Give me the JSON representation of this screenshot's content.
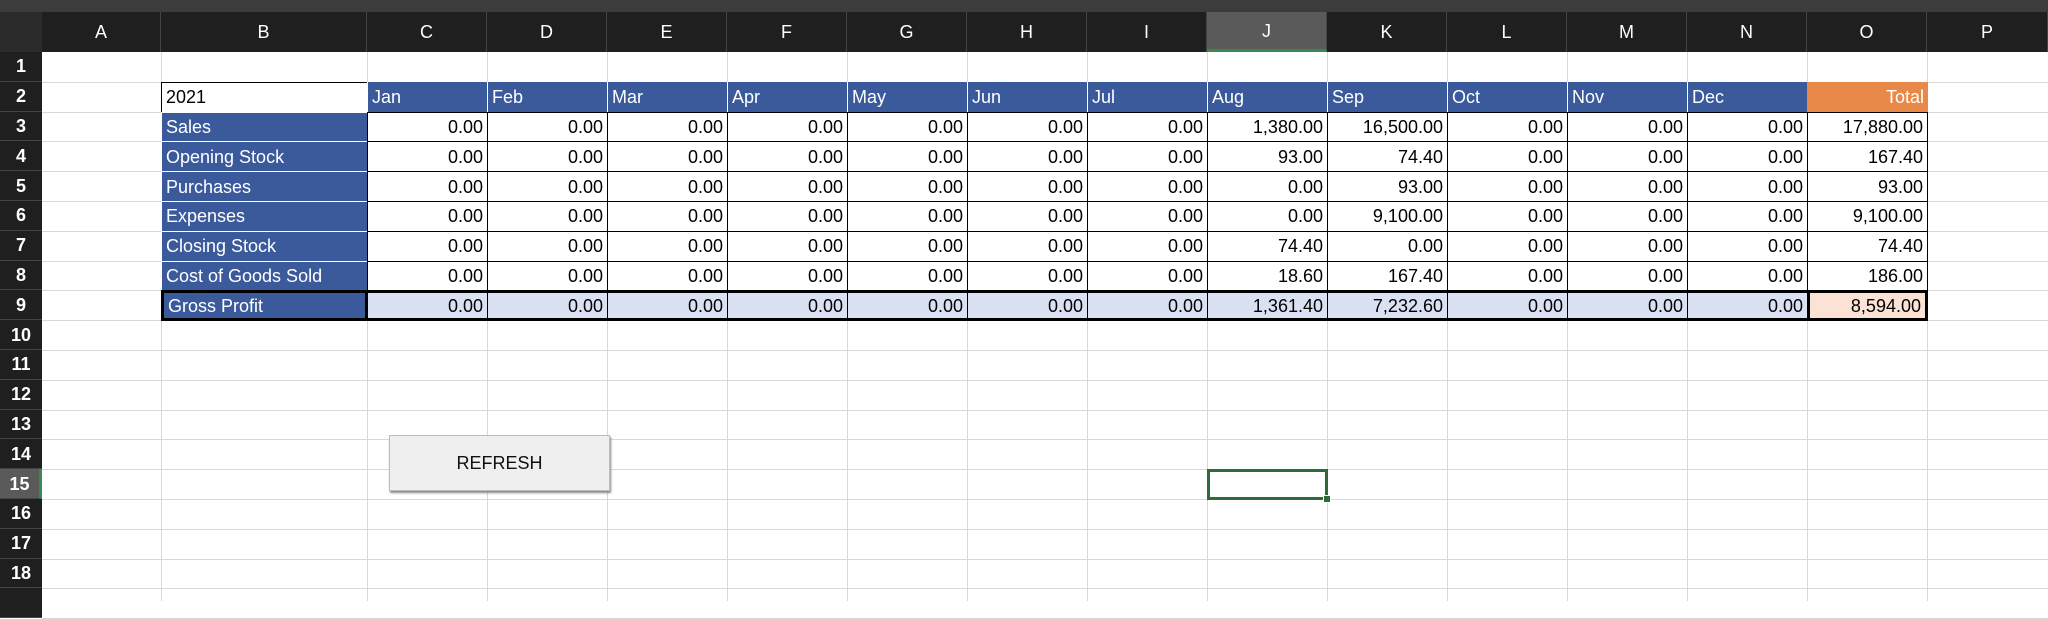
{
  "column_headers": [
    "A",
    "B",
    "C",
    "D",
    "E",
    "F",
    "G",
    "H",
    "I",
    "J",
    "K",
    "L",
    "M",
    "N",
    "O",
    "P"
  ],
  "row_headers": [
    1,
    2,
    3,
    4,
    5,
    6,
    7,
    8,
    9,
    10,
    11,
    12,
    13,
    14,
    15,
    16,
    17,
    18
  ],
  "table": {
    "year": "2021",
    "months": [
      "Jan",
      "Feb",
      "Mar",
      "Apr",
      "May",
      "Jun",
      "Jul",
      "Aug",
      "Sep",
      "Oct",
      "Nov",
      "Dec"
    ],
    "total_label": "Total",
    "rows": [
      {
        "label": "Sales",
        "values": [
          "0.00",
          "0.00",
          "0.00",
          "0.00",
          "0.00",
          "0.00",
          "0.00",
          "1,380.00",
          "16,500.00",
          "0.00",
          "0.00",
          "0.00"
        ],
        "total": "17,880.00"
      },
      {
        "label": "Opening Stock",
        "values": [
          "0.00",
          "0.00",
          "0.00",
          "0.00",
          "0.00",
          "0.00",
          "0.00",
          "93.00",
          "74.40",
          "0.00",
          "0.00",
          "0.00"
        ],
        "total": "167.40"
      },
      {
        "label": "Purchases",
        "values": [
          "0.00",
          "0.00",
          "0.00",
          "0.00",
          "0.00",
          "0.00",
          "0.00",
          "0.00",
          "93.00",
          "0.00",
          "0.00",
          "0.00"
        ],
        "total": "93.00"
      },
      {
        "label": "Expenses",
        "values": [
          "0.00",
          "0.00",
          "0.00",
          "0.00",
          "0.00",
          "0.00",
          "0.00",
          "0.00",
          "9,100.00",
          "0.00",
          "0.00",
          "0.00"
        ],
        "total": "9,100.00"
      },
      {
        "label": "Closing Stock",
        "values": [
          "0.00",
          "0.00",
          "0.00",
          "0.00",
          "0.00",
          "0.00",
          "0.00",
          "74.40",
          "0.00",
          "0.00",
          "0.00",
          "0.00"
        ],
        "total": "74.40"
      },
      {
        "label": "Cost of Goods Sold",
        "values": [
          "0.00",
          "0.00",
          "0.00",
          "0.00",
          "0.00",
          "0.00",
          "0.00",
          "18.60",
          "167.40",
          "0.00",
          "0.00",
          "0.00"
        ],
        "total": "186.00"
      },
      {
        "label": "Gross Profit",
        "values": [
          "0.00",
          "0.00",
          "0.00",
          "0.00",
          "0.00",
          "0.00",
          "0.00",
          "1,361.40",
          "7,232.60",
          "0.00",
          "0.00",
          "0.00"
        ],
        "total": "8,594.00"
      }
    ]
  },
  "button": "REFRESH"
}
